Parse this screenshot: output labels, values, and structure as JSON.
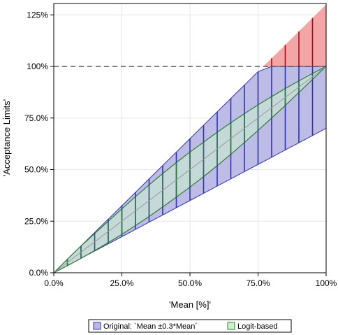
{
  "chart_data": {
    "type": "area",
    "xlabel": "'Mean [%]'",
    "ylabel": "'Acceptance Limits'",
    "xlim": [
      0,
      100
    ],
    "ylim": [
      0,
      130
    ],
    "x_ticks": [
      0,
      25,
      50,
      75,
      100
    ],
    "x_tick_labels": [
      "0.0%",
      "25.0%",
      "50.0%",
      "75.0%",
      "100%"
    ],
    "y_ticks": [
      0,
      25,
      50,
      75,
      100,
      125
    ],
    "y_tick_labels": [
      "0.0%",
      "25.0%",
      "50.0%",
      "75.0%",
      "100%",
      "125%"
    ],
    "grid": true,
    "reference_line_y": 100,
    "legend_position": "bottom",
    "series": [
      {
        "name": "Original: `Mean ±0.3*Mean´",
        "color": "#3333aa",
        "fill": "#b8b8e6",
        "x": [
          0,
          5,
          10,
          15,
          20,
          25,
          30,
          35,
          40,
          45,
          50,
          55,
          60,
          65,
          70,
          75,
          80,
          85,
          90,
          95,
          100
        ],
        "lower": [
          0,
          3.5,
          7,
          10.5,
          14,
          17.5,
          21,
          24.5,
          28,
          31.5,
          35,
          38.5,
          42,
          45.5,
          49,
          52.5,
          56,
          59.5,
          63,
          66.5,
          70
        ],
        "upper": [
          0,
          6.5,
          13,
          19.5,
          26,
          32.5,
          39,
          45.5,
          52,
          58.5,
          65,
          71.5,
          78,
          84.5,
          91,
          97.5,
          104,
          110.5,
          117,
          123.5,
          130
        ]
      },
      {
        "name": "Logit-based",
        "color": "#2e7d32",
        "fill": "#ccf2cc",
        "x": [
          0,
          5,
          10,
          15,
          20,
          25,
          30,
          35,
          40,
          45,
          50,
          55,
          60,
          65,
          70,
          75,
          80,
          85,
          90,
          95,
          100
        ],
        "lower": [
          0,
          3.4,
          7.0,
          10.7,
          14.6,
          18.6,
          22.9,
          27.3,
          31.9,
          36.7,
          41.5,
          46.6,
          51.9,
          57.4,
          63.1,
          69.0,
          75.0,
          81.1,
          87.4,
          93.7,
          100
        ],
        "upper": [
          0,
          6.6,
          13.0,
          19.0,
          25.0,
          31.0,
          36.9,
          42.6,
          48.1,
          53.4,
          58.5,
          63.3,
          68.1,
          72.7,
          77.1,
          81.4,
          85.4,
          89.3,
          93.0,
          96.6,
          100
        ]
      }
    ]
  }
}
